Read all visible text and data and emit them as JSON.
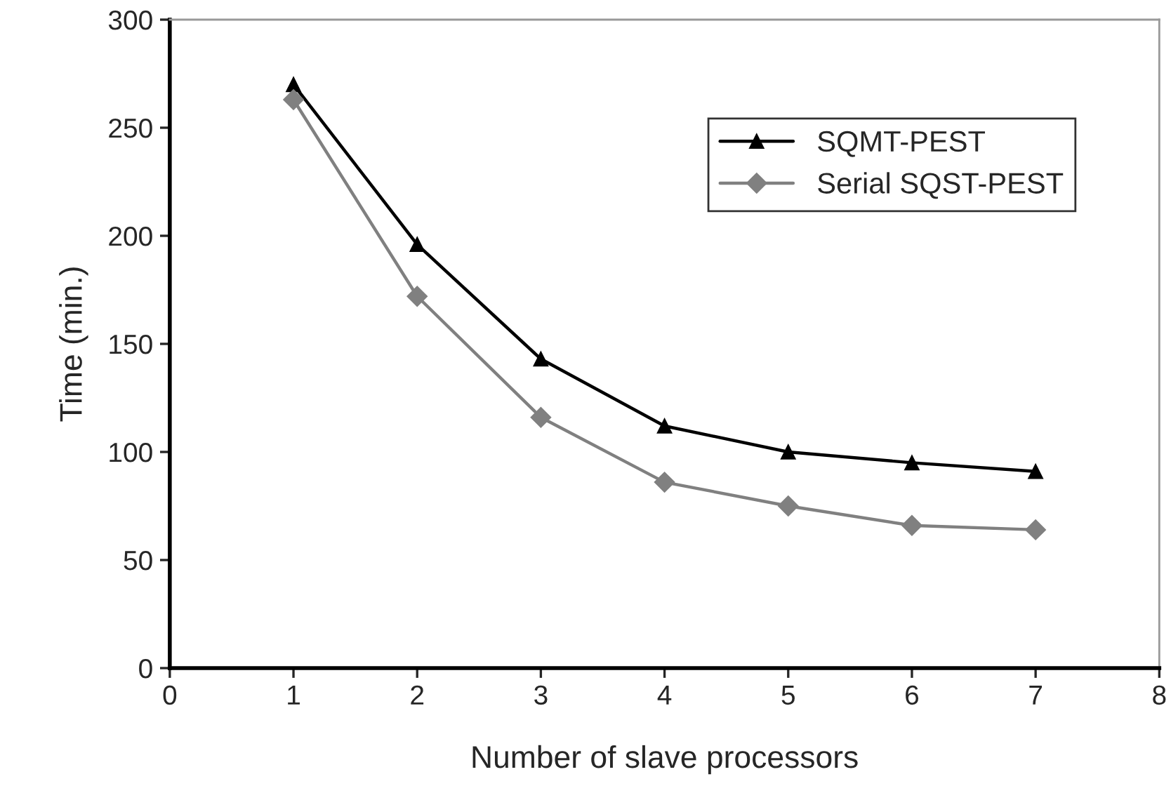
{
  "chart_data": {
    "type": "line",
    "xlabel": "Number of slave processors",
    "ylabel": "Time (min.)",
    "x": [
      1,
      2,
      3,
      4,
      5,
      6,
      7
    ],
    "series": [
      {
        "name": "SQMT-PEST",
        "color": "#000000",
        "marker": "triangle",
        "values": [
          270,
          196,
          143,
          112,
          100,
          95,
          91
        ]
      },
      {
        "name": "Serial SQST-PEST",
        "color": "#808080",
        "marker": "diamond",
        "values": [
          263,
          172,
          116,
          86,
          75,
          66,
          64
        ]
      }
    ],
    "xlim": [
      0,
      8
    ],
    "xticks": [
      0,
      1,
      2,
      3,
      4,
      5,
      6,
      7,
      8
    ],
    "ylim": [
      0,
      300
    ],
    "yticks": [
      0,
      50,
      100,
      150,
      200,
      250,
      300
    ],
    "grid": false,
    "legend": "top right",
    "line_style": "solid"
  }
}
